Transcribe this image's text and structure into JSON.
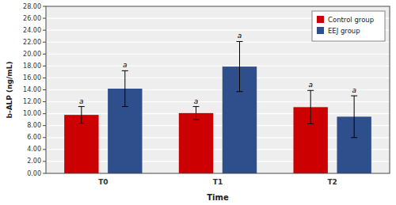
{
  "chart_data": {
    "type": "bar",
    "xlabel": "Time",
    "ylabel": "b-ALP (ng/mL)",
    "categories": [
      "T0",
      "T1",
      "T2"
    ],
    "series": [
      {
        "name": "Control group",
        "color": "#CC0000",
        "values": [
          9.8,
          10.1,
          11.1
        ],
        "errors": [
          1.4,
          1.1,
          2.8
        ],
        "annotations": [
          "a",
          "a",
          "a"
        ]
      },
      {
        "name": "EEJ group",
        "color": "#2E4F8C",
        "values": [
          14.2,
          17.9,
          9.5
        ],
        "errors": [
          3.0,
          4.2,
          3.5
        ],
        "annotations": [
          "a",
          "a",
          "a"
        ]
      }
    ],
    "ylim": [
      0,
      28
    ],
    "yticks": [
      {
        "value": 0.0,
        "label": "0.00"
      },
      {
        "value": 2.0,
        "label": "2.00"
      },
      {
        "value": 4.0,
        "label": "4.00"
      },
      {
        "value": 6.0,
        "label": "6.00"
      },
      {
        "value": 8.0,
        "label": "8.00"
      },
      {
        "value": 10.0,
        "label": "10.00"
      },
      {
        "value": 12.0,
        "label": "12.00"
      },
      {
        "value": 14.0,
        "label": "14.00"
      },
      {
        "value": 16.0,
        "label": "16.00"
      },
      {
        "value": 18.0,
        "label": "18.00"
      },
      {
        "value": 20.0,
        "label": "20.00"
      },
      {
        "value": 22.0,
        "label": "22.00"
      },
      {
        "value": 24.0,
        "label": "24.00"
      },
      {
        "value": 26.0,
        "label": "26.00"
      },
      {
        "value": 28.0,
        "label": "28.00"
      }
    ],
    "grid": true,
    "legend": "upper right"
  }
}
